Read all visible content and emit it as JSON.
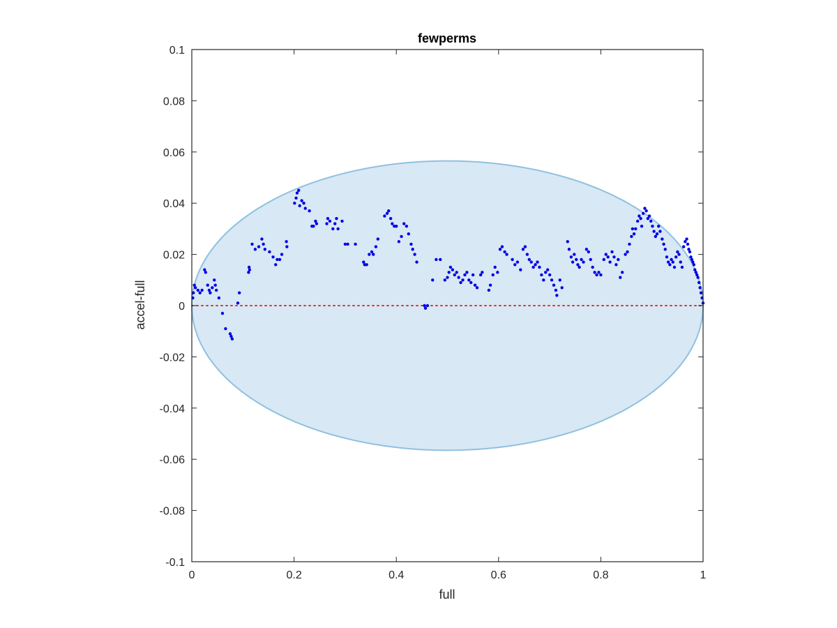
{
  "chart_data": {
    "type": "scatter",
    "title": "fewperms",
    "xlabel": "full",
    "ylabel": "accel-full",
    "xlim": [
      0,
      1
    ],
    "ylim": [
      -0.1,
      0.1
    ],
    "xticks": [
      "0",
      "0.2",
      "0.4",
      "0.6",
      "0.8",
      "1"
    ],
    "yticks": [
      "-0.1",
      "-0.08",
      "-0.06",
      "-0.04",
      "-0.02",
      "0",
      "0.02",
      "0.04",
      "0.06",
      "0.08",
      "0.1"
    ],
    "grid": false,
    "reference_line": {
      "y": 0,
      "style": "dotted",
      "color": "#e8302a"
    },
    "ellipse": {
      "center_x": 0.5,
      "center_y": 0.0,
      "half_width": 0.5,
      "half_height": 0.0565,
      "fill": "#d8e8f4",
      "stroke": "#8fc0e0"
    },
    "point_color": "#0000e6",
    "points": [
      [
        0.002,
        0.003
      ],
      [
        0.003,
        0.005
      ],
      [
        0.005,
        0.008
      ],
      [
        0.007,
        0.007
      ],
      [
        0.012,
        0.006
      ],
      [
        0.016,
        0.005
      ],
      [
        0.02,
        0.006
      ],
      [
        0.025,
        0.014
      ],
      [
        0.027,
        0.013
      ],
      [
        0.031,
        0.008
      ],
      [
        0.034,
        0.006
      ],
      [
        0.036,
        0.005
      ],
      [
        0.04,
        0.007
      ],
      [
        0.044,
        0.01
      ],
      [
        0.046,
        0.008
      ],
      [
        0.048,
        0.006
      ],
      [
        0.053,
        0.003
      ],
      [
        0.06,
        -0.003
      ],
      [
        0.066,
        -0.009
      ],
      [
        0.075,
        -0.011
      ],
      [
        0.077,
        -0.012
      ],
      [
        0.079,
        -0.013
      ],
      [
        0.09,
        0.001
      ],
      [
        0.093,
        0.005
      ],
      [
        0.111,
        0.013
      ],
      [
        0.112,
        0.015
      ],
      [
        0.113,
        0.014
      ],
      [
        0.118,
        0.024
      ],
      [
        0.124,
        0.022
      ],
      [
        0.131,
        0.023
      ],
      [
        0.137,
        0.026
      ],
      [
        0.14,
        0.024
      ],
      [
        0.143,
        0.022
      ],
      [
        0.152,
        0.021
      ],
      [
        0.159,
        0.019
      ],
      [
        0.164,
        0.016
      ],
      [
        0.167,
        0.018
      ],
      [
        0.172,
        0.018
      ],
      [
        0.176,
        0.02
      ],
      [
        0.185,
        0.025
      ],
      [
        0.186,
        0.023
      ],
      [
        0.201,
        0.04
      ],
      [
        0.204,
        0.042
      ],
      [
        0.206,
        0.044
      ],
      [
        0.209,
        0.045
      ],
      [
        0.211,
        0.039
      ],
      [
        0.215,
        0.041
      ],
      [
        0.219,
        0.04
      ],
      [
        0.222,
        0.038
      ],
      [
        0.23,
        0.037
      ],
      [
        0.235,
        0.031
      ],
      [
        0.238,
        0.031
      ],
      [
        0.242,
        0.033
      ],
      [
        0.244,
        0.032
      ],
      [
        0.264,
        0.032
      ],
      [
        0.266,
        0.034
      ],
      [
        0.27,
        0.033
      ],
      [
        0.276,
        0.03
      ],
      [
        0.28,
        0.032
      ],
      [
        0.283,
        0.034
      ],
      [
        0.286,
        0.03
      ],
      [
        0.294,
        0.033
      ],
      [
        0.3,
        0.024
      ],
      [
        0.305,
        0.024
      ],
      [
        0.32,
        0.024
      ],
      [
        0.336,
        0.017
      ],
      [
        0.338,
        0.016
      ],
      [
        0.342,
        0.016
      ],
      [
        0.347,
        0.02
      ],
      [
        0.352,
        0.021
      ],
      [
        0.355,
        0.02
      ],
      [
        0.36,
        0.023
      ],
      [
        0.364,
        0.026
      ],
      [
        0.377,
        0.035
      ],
      [
        0.382,
        0.036
      ],
      [
        0.385,
        0.037
      ],
      [
        0.389,
        0.034
      ],
      [
        0.392,
        0.032
      ],
      [
        0.396,
        0.031
      ],
      [
        0.4,
        0.031
      ],
      [
        0.405,
        0.025
      ],
      [
        0.41,
        0.027
      ],
      [
        0.415,
        0.032
      ],
      [
        0.42,
        0.031
      ],
      [
        0.424,
        0.028
      ],
      [
        0.429,
        0.024
      ],
      [
        0.432,
        0.022
      ],
      [
        0.436,
        0.02
      ],
      [
        0.44,
        0.017
      ],
      [
        0.455,
        0.0
      ],
      [
        0.457,
        -0.001
      ],
      [
        0.461,
        0.0
      ],
      [
        0.471,
        0.01
      ],
      [
        0.478,
        0.018
      ],
      [
        0.486,
        0.018
      ],
      [
        0.495,
        0.01
      ],
      [
        0.5,
        0.011
      ],
      [
        0.503,
        0.013
      ],
      [
        0.506,
        0.015
      ],
      [
        0.51,
        0.014
      ],
      [
        0.514,
        0.012
      ],
      [
        0.518,
        0.013
      ],
      [
        0.522,
        0.011
      ],
      [
        0.526,
        0.009
      ],
      [
        0.53,
        0.01
      ],
      [
        0.534,
        0.012
      ],
      [
        0.538,
        0.013
      ],
      [
        0.542,
        0.01
      ],
      [
        0.546,
        0.009
      ],
      [
        0.55,
        0.012
      ],
      [
        0.554,
        0.008
      ],
      [
        0.558,
        0.007
      ],
      [
        0.565,
        0.012
      ],
      [
        0.568,
        0.013
      ],
      [
        0.581,
        0.006
      ],
      [
        0.584,
        0.008
      ],
      [
        0.589,
        0.012
      ],
      [
        0.593,
        0.015
      ],
      [
        0.598,
        0.013
      ],
      [
        0.603,
        0.022
      ],
      [
        0.607,
        0.023
      ],
      [
        0.612,
        0.021
      ],
      [
        0.616,
        0.02
      ],
      [
        0.627,
        0.018
      ],
      [
        0.632,
        0.016
      ],
      [
        0.637,
        0.017
      ],
      [
        0.643,
        0.014
      ],
      [
        0.648,
        0.022
      ],
      [
        0.652,
        0.023
      ],
      [
        0.656,
        0.02
      ],
      [
        0.66,
        0.018
      ],
      [
        0.664,
        0.017
      ],
      [
        0.668,
        0.015
      ],
      [
        0.672,
        0.016
      ],
      [
        0.676,
        0.017
      ],
      [
        0.68,
        0.015
      ],
      [
        0.684,
        0.012
      ],
      [
        0.688,
        0.01
      ],
      [
        0.692,
        0.013
      ],
      [
        0.696,
        0.014
      ],
      [
        0.7,
        0.012
      ],
      [
        0.704,
        0.01
      ],
      [
        0.708,
        0.008
      ],
      [
        0.712,
        0.006
      ],
      [
        0.714,
        0.004
      ],
      [
        0.72,
        0.01
      ],
      [
        0.724,
        0.007
      ],
      [
        0.735,
        0.025
      ],
      [
        0.738,
        0.022
      ],
      [
        0.742,
        0.019
      ],
      [
        0.745,
        0.017
      ],
      [
        0.748,
        0.02
      ],
      [
        0.752,
        0.018
      ],
      [
        0.755,
        0.016
      ],
      [
        0.758,
        0.015
      ],
      [
        0.762,
        0.018
      ],
      [
        0.766,
        0.017
      ],
      [
        0.772,
        0.022
      ],
      [
        0.776,
        0.021
      ],
      [
        0.78,
        0.018
      ],
      [
        0.784,
        0.015
      ],
      [
        0.788,
        0.013
      ],
      [
        0.792,
        0.012
      ],
      [
        0.796,
        0.013
      ],
      [
        0.8,
        0.012
      ],
      [
        0.806,
        0.018
      ],
      [
        0.81,
        0.02
      ],
      [
        0.814,
        0.019
      ],
      [
        0.818,
        0.017
      ],
      [
        0.822,
        0.021
      ],
      [
        0.826,
        0.019
      ],
      [
        0.83,
        0.016
      ],
      [
        0.834,
        0.018
      ],
      [
        0.838,
        0.011
      ],
      [
        0.842,
        0.013
      ],
      [
        0.848,
        0.02
      ],
      [
        0.852,
        0.021
      ],
      [
        0.856,
        0.024
      ],
      [
        0.86,
        0.027
      ],
      [
        0.862,
        0.03
      ],
      [
        0.865,
        0.028
      ],
      [
        0.868,
        0.03
      ],
      [
        0.872,
        0.033
      ],
      [
        0.875,
        0.035
      ],
      [
        0.878,
        0.034
      ],
      [
        0.88,
        0.031
      ],
      [
        0.883,
        0.036
      ],
      [
        0.886,
        0.038
      ],
      [
        0.889,
        0.037
      ],
      [
        0.892,
        0.034
      ],
      [
        0.895,
        0.035
      ],
      [
        0.898,
        0.033
      ],
      [
        0.901,
        0.031
      ],
      [
        0.904,
        0.029
      ],
      [
        0.907,
        0.027
      ],
      [
        0.91,
        0.028
      ],
      [
        0.913,
        0.031
      ],
      [
        0.916,
        0.029
      ],
      [
        0.92,
        0.026
      ],
      [
        0.923,
        0.024
      ],
      [
        0.926,
        0.022
      ],
      [
        0.929,
        0.019
      ],
      [
        0.932,
        0.017
      ],
      [
        0.935,
        0.016
      ],
      [
        0.938,
        0.018
      ],
      [
        0.941,
        0.017
      ],
      [
        0.944,
        0.015
      ],
      [
        0.947,
        0.019
      ],
      [
        0.95,
        0.021
      ],
      [
        0.953,
        0.02
      ],
      [
        0.956,
        0.017
      ],
      [
        0.959,
        0.015
      ],
      [
        0.962,
        0.023
      ],
      [
        0.965,
        0.025
      ],
      [
        0.968,
        0.026
      ],
      [
        0.97,
        0.024
      ],
      [
        0.972,
        0.022
      ],
      [
        0.974,
        0.021
      ],
      [
        0.976,
        0.019
      ],
      [
        0.978,
        0.018
      ],
      [
        0.98,
        0.017
      ],
      [
        0.982,
        0.016
      ],
      [
        0.984,
        0.014
      ],
      [
        0.986,
        0.013
      ],
      [
        0.988,
        0.012
      ],
      [
        0.99,
        0.011
      ],
      [
        0.992,
        0.009
      ],
      [
        0.994,
        0.007
      ],
      [
        0.996,
        0.005
      ],
      [
        0.998,
        0.003
      ],
      [
        1.0,
        0.001
      ]
    ]
  }
}
